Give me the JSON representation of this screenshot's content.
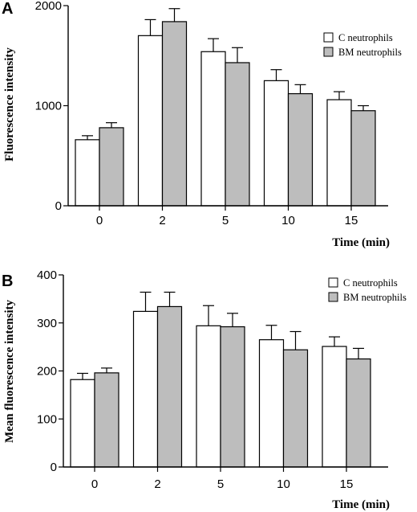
{
  "colors": {
    "series_c": "#ffffff",
    "series_bm": "#bdbdbd",
    "stroke": "#000000"
  },
  "chart_data": [
    {
      "panel": "A",
      "type": "bar",
      "categories": [
        "0",
        "2",
        "5",
        "10",
        "15"
      ],
      "xlabel": "Time (min)",
      "ylabel": "Fluorescence intensity",
      "ylim": [
        0,
        2000
      ],
      "yticks": [
        "0",
        "1000",
        "2000"
      ],
      "yticks_values": [
        0,
        1000,
        2000
      ],
      "legend_position": "top-right",
      "series": [
        {
          "name": "C neutrophils",
          "color": "#ffffff",
          "values": [
            660,
            1700,
            1540,
            1250,
            1060
          ],
          "errors": [
            40,
            160,
            130,
            110,
            80
          ]
        },
        {
          "name": "BM neutrophils",
          "color": "#bdbdbd",
          "values": [
            780,
            1840,
            1430,
            1120,
            950
          ],
          "errors": [
            50,
            130,
            150,
            90,
            50
          ]
        }
      ]
    },
    {
      "panel": "B",
      "type": "bar",
      "categories": [
        "0",
        "2",
        "5",
        "10",
        "15"
      ],
      "xlabel": "Time (min)",
      "ylabel": "Mean fluorescence intensity",
      "ylim": [
        0,
        400
      ],
      "yticks": [
        "0",
        "100",
        "200",
        "300",
        "400"
      ],
      "yticks_values": [
        0,
        100,
        200,
        300,
        400
      ],
      "legend_position": "top-right",
      "series": [
        {
          "name": "C neutrophils",
          "color": "#ffffff",
          "values": [
            182,
            324,
            294,
            265,
            251
          ],
          "errors": [
            13,
            40,
            42,
            30,
            20
          ]
        },
        {
          "name": "BM neutrophils",
          "color": "#bdbdbd",
          "values": [
            196,
            334,
            292,
            244,
            225
          ],
          "errors": [
            10,
            30,
            28,
            38,
            22
          ]
        }
      ]
    }
  ]
}
